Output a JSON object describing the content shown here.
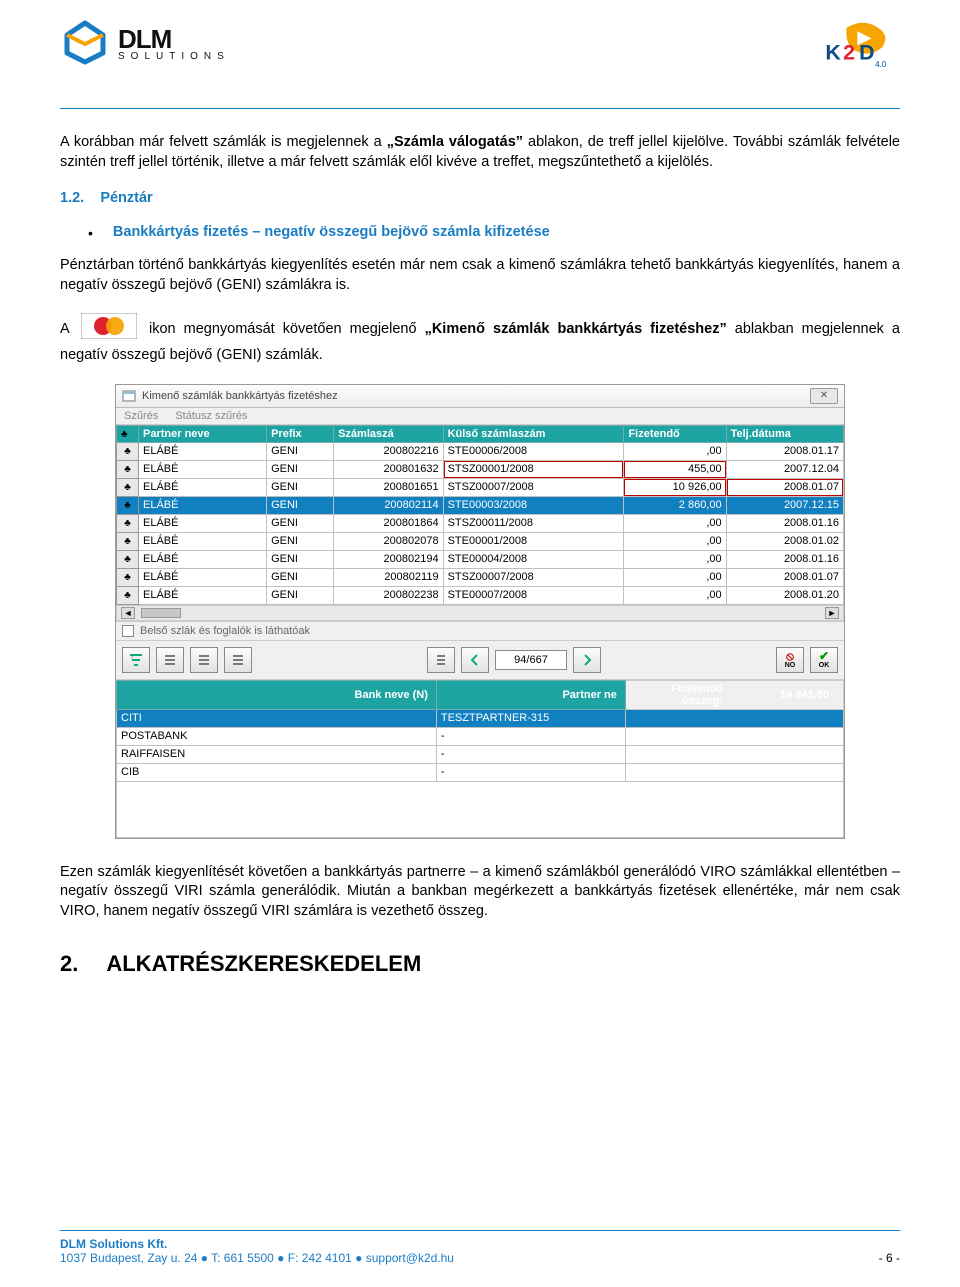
{
  "header": {
    "logo_text": "DLM",
    "logo_sub": "SOLUTIONS",
    "k2d_version": "4.0"
  },
  "p1_a": "A korábban már felvett számlák is megjelennek a ",
  "p1_b": "„Számla válogatás”",
  "p1_c": " ablakon, de treff jellel kijelölve. További számlák felvétele szintén treff jellel történik, illetve a már felvett számlák elől kivéve a treffet, megszűntethető a kijelölés.",
  "sec_num": "1.2.",
  "sec_title": "Pénztár",
  "bullet": "Bankkártyás fizetés – negatív összegű bejövő számla kifizetése",
  "p2": "Pénztárban történő bankkártyás kiegyenlítés esetén már nem csak a kimenő számlákra tehető bankkártyás kiegyenlítés, hanem a negatív összegű bejövő (GENI) számlákra is.",
  "p3_a": "A ",
  "p3_b": " ikon megnyomását követően megjelenő ",
  "p3_c": "„Kimenő számlák bankkártyás fizetéshez”",
  "p3_d": " ablakban megjelennek a negatív összegű bejövő (GENI) számlák.",
  "win": {
    "title": "Kimenő számlák bankkártyás fizetéshez",
    "menu1": "Szűrés",
    "menu2": "Státusz szűrés",
    "cols": [
      "",
      "Partner neve",
      "Prefix",
      "Számlaszá",
      "Külső számlaszám",
      "Fizetendő",
      "Telj.dátuma"
    ],
    "rows": [
      {
        "p": "ELÁBÉ",
        "px": "GENI",
        "s": "200802216",
        "k": "STE00006/2008",
        "f": ",00",
        "t": "2008.01.17",
        "cls": ""
      },
      {
        "p": "ELÁBÉ",
        "px": "GENI",
        "s": "200801632",
        "k": "STSZ00001/2008",
        "f": "455,00",
        "t": "2007.12.04",
        "cls": "mark2"
      },
      {
        "p": "ELÁBÉ",
        "px": "GENI",
        "s": "200801651",
        "k": "STSZ00007/2008",
        "f": "10 926,00",
        "t": "2008.01.07",
        "cls": "markTop"
      },
      {
        "p": "ELÁBÉ",
        "px": "GENI",
        "s": "200802114",
        "k": "STE00003/2008",
        "f": "2 860,00",
        "t": "2007.12.15",
        "cls": "selected"
      },
      {
        "p": "ELÁBÉ",
        "px": "GENI",
        "s": "200801864",
        "k": "STSZ00011/2008",
        "f": ",00",
        "t": "2008.01.16",
        "cls": ""
      },
      {
        "p": "ELÁBÉ",
        "px": "GENI",
        "s": "200802078",
        "k": "STE00001/2008",
        "f": ",00",
        "t": "2008.01.02",
        "cls": ""
      },
      {
        "p": "ELÁBÉ",
        "px": "GENI",
        "s": "200802194",
        "k": "STE00004/2008",
        "f": ",00",
        "t": "2008.01.16",
        "cls": ""
      },
      {
        "p": "ELÁBÉ",
        "px": "GENI",
        "s": "200802119",
        "k": "STSZ00007/2008",
        "f": ",00",
        "t": "2008.01.07",
        "cls": ""
      },
      {
        "p": "ELÁBÉ",
        "px": "GENI",
        "s": "200802238",
        "k": "STE00007/2008",
        "f": ",00",
        "t": "2008.01.20",
        "cls": ""
      }
    ],
    "chk_label": "Belső szlák és foglalók is láthatóak",
    "counter": "94/667",
    "no_label": "NO",
    "ok_label": "OK",
    "col2a": "Bank neve (N)",
    "col2b": "Partner ne",
    "total_label": "Fizetendő összeg:",
    "total_value": "14 241,00",
    "banks": [
      {
        "n": "CITI",
        "p": "TESZTPARTNER-315",
        "hl": true
      },
      {
        "n": "POSTABANK",
        "p": "-",
        "hl": false
      },
      {
        "n": "RAIFFAISEN",
        "p": "-",
        "hl": false
      },
      {
        "n": "CIB",
        "p": "-",
        "hl": false
      }
    ]
  },
  "p4": "Ezen számlák kiegyenlítését követően a bankkártyás partnerre – a kimenő számlákból generálódó VIRO számlákkal ellentétben – negatív összegű VIRI számla generálódik. Miután a bankban megérkezett a bankkártyás fizetések ellenértéke, már nem csak VIRO, hanem negatív összegű VIRI számlára is vezethető összeg.",
  "big_num": "2.",
  "big_title": "ALKATRÉSZKERESKEDELEM",
  "footer": {
    "l1": "DLM Solutions Kft.",
    "l2": "1037 Budapest, Zay u. 24  ●  T: 661 5500  ●  F: 242 4101  ●  support@k2d.hu",
    "page": "- 6 -"
  },
  "colors": {
    "blue": "#1a7dc4",
    "teal": "#1ea3a3",
    "rowblue": "#1080c0"
  }
}
